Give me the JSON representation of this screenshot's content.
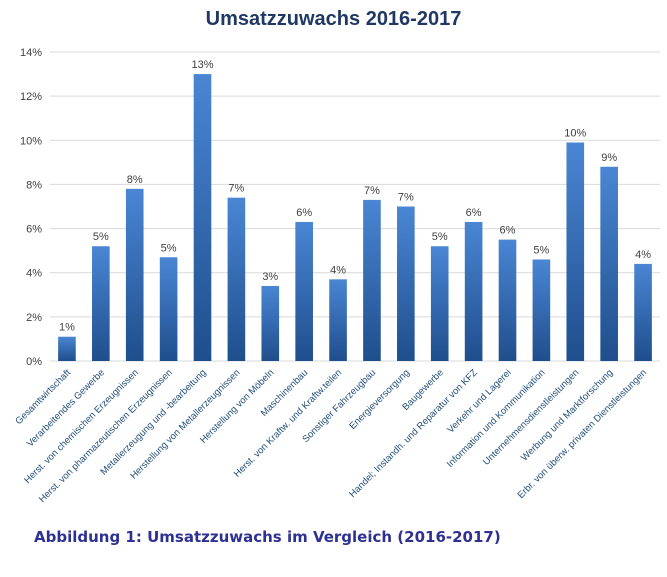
{
  "chart_data": {
    "type": "bar",
    "title": "Umsatzzuwachs  2016-2017",
    "xlabel": "",
    "ylabel": "",
    "ylim": [
      0,
      14
    ],
    "yticks": [
      "0%",
      "2%",
      "4%",
      "6%",
      "8%",
      "10%",
      "12%",
      "14%"
    ],
    "grid": true,
    "categories": [
      "Gesamtwirtschaft",
      "Verarbeitendes Gewerbe",
      "Herst. von chemischen Erzeugnissen",
      "Herst. von pharmazeutischen Erzeugnissen",
      "Metallerzeugung und -bearbeitung",
      "Herstellung von Metallerzeugnissen",
      "Herstellung von Möbeln",
      "Maschinenbau",
      "Herst. von Kraftw. und Kraftw.teilen",
      "Sonstiger Fahrzeugbau",
      "Energieversorgung",
      "Baugewerbe",
      "Handel; Instandh. und Reparatur von KFZ",
      "Verkehr und Lagerei",
      "Information und Kommunikation",
      "Unternehmensdienstleistungen",
      "Werbung und Marktforschung",
      "Erbr. von überw. privaten Dienstleistungen"
    ],
    "values": [
      1.1,
      5.2,
      7.8,
      4.7,
      13.0,
      7.4,
      3.4,
      6.3,
      3.7,
      7.3,
      7.0,
      5.2,
      6.3,
      5.5,
      4.6,
      9.9,
      8.8,
      4.4
    ],
    "data_labels": [
      "1%",
      "5%",
      "8%",
      "5%",
      "13%",
      "7%",
      "3%",
      "6%",
      "4%",
      "7%",
      "7%",
      "5%",
      "6%",
      "6%",
      "5%",
      "10%",
      "9%",
      "4%"
    ],
    "bar_color_top": "#4a86d4",
    "bar_color_bottom": "#1f4e8c",
    "grid_color": "#d9d9d9",
    "title_color": "#1f3864",
    "label_color": "#1f4e79"
  },
  "caption": "Abbildung 1: Umsatzzuwachs im Vergleich (2016-2017)"
}
